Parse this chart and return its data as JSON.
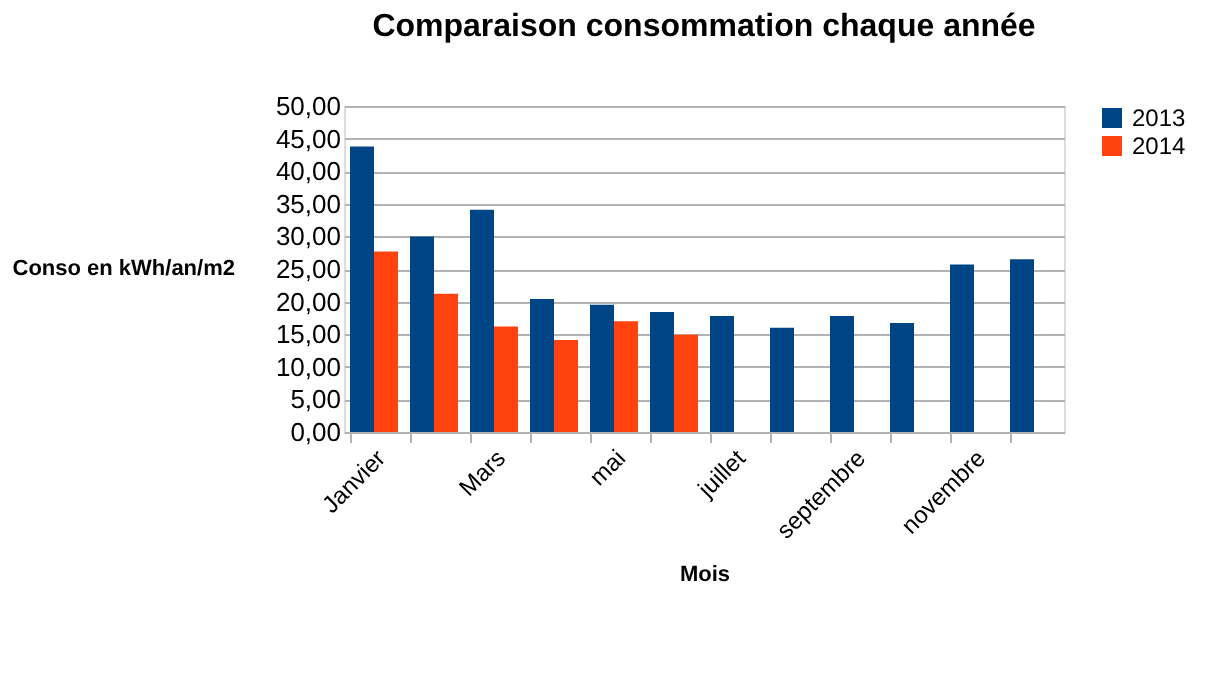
{
  "chart_data": {
    "type": "bar",
    "title": "Comparaison consommation chaque année",
    "xlabel": "Mois",
    "ylabel": "Conso en kWh/an/m2",
    "categories": [
      "Janvier",
      null,
      "Mars",
      null,
      "mai",
      null,
      "juillet",
      null,
      "septembre",
      null,
      "novembre",
      null
    ],
    "series": [
      {
        "name": "2013",
        "color": "#004586",
        "values": [
          43.8,
          30.0,
          34.1,
          20.4,
          19.5,
          18.4,
          17.8,
          16.0,
          17.8,
          16.7,
          25.7,
          26.5
        ]
      },
      {
        "name": "2014",
        "color": "#ff420e",
        "values": [
          27.7,
          21.2,
          16.2,
          14.1,
          17.0,
          14.9,
          null,
          null,
          null,
          null,
          null,
          null
        ]
      }
    ],
    "ylim": [
      0,
      50
    ],
    "yticks": [
      {
        "value": 0,
        "label": "0,00"
      },
      {
        "value": 5,
        "label": "5,00"
      },
      {
        "value": 10,
        "label": "10,00"
      },
      {
        "value": 15,
        "label": "15,00"
      },
      {
        "value": 20,
        "label": "20,00"
      },
      {
        "value": 25,
        "label": "25,00"
      },
      {
        "value": 30,
        "label": "30,00"
      },
      {
        "value": 35,
        "label": "35,00"
      },
      {
        "value": 40,
        "label": "40,00"
      },
      {
        "value": 45,
        "label": "45,00"
      },
      {
        "value": 50,
        "label": "50,00"
      }
    ],
    "grid": "y",
    "legend": "right"
  }
}
